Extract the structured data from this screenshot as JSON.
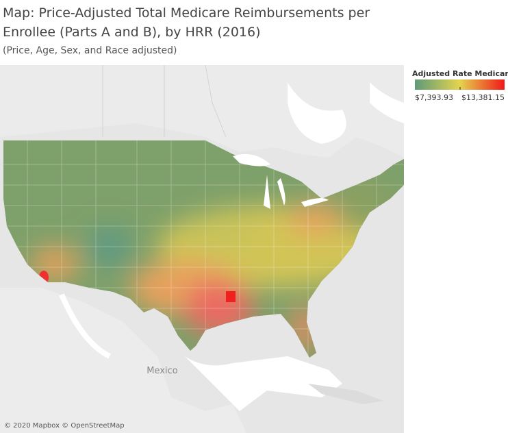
{
  "header": {
    "title_lines": [
      "Map:  Price-Adjusted Total Medicare Reimbursements per",
      "Enrollee (Parts A and B), by HRR (2016)"
    ],
    "subtitle": "(Price, Age, Sex, and Race adjusted)"
  },
  "legend": {
    "title": "Adjusted Rate Medicar..",
    "min": {
      "value": 7393.93,
      "label": "$7,393.93"
    },
    "max": {
      "value": 13381.15,
      "label": "$13,381.15"
    }
  },
  "map": {
    "labels": [
      "Mexico"
    ],
    "attribution": "© 2020 Mapbox © OpenStreetMap"
  }
}
